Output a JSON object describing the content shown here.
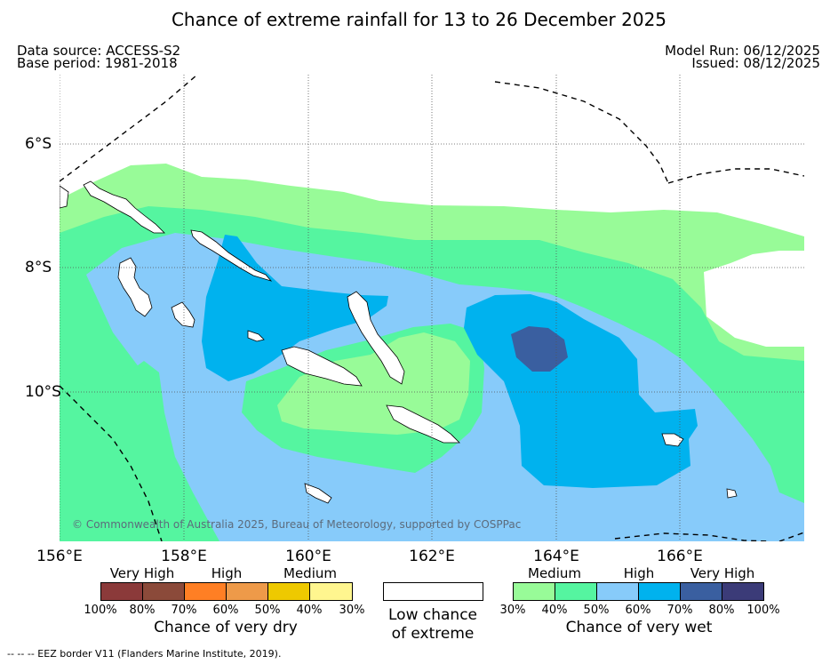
{
  "title": "Chance of extreme rainfall for 13 to 26 December 2025",
  "meta": {
    "data_source": "Data source: ACCESS-S2",
    "base_period": "Base period: 1981-2018",
    "model_run": "Model Run: 06/12/2025",
    "issued": "Issued: 08/12/2025"
  },
  "map": {
    "lon_labels": [
      "156°E",
      "158°E",
      "160°E",
      "162°E",
      "164°E",
      "166°E"
    ],
    "lat_labels": [
      "6°S",
      "8°S",
      "10°S"
    ],
    "copyright": "© Commonwealth of Australia 2025, Bureau of Meteorology, supported by COSPPac",
    "fill_colors": {
      "c30": "#98fb98",
      "c40": "#55f5a0",
      "c50": "#87cbfa",
      "c60": "#00b2ee",
      "c70": "#3a5fa0",
      "land": "#ffffff"
    }
  },
  "legend": {
    "dry": {
      "categories": [
        "Very High",
        "High",
        "Medium"
      ],
      "percent_labels": [
        "100%",
        "80%",
        "70%",
        "60%",
        "50%",
        "40%",
        "30%"
      ],
      "colors": [
        "#8b3a3a",
        "#8b4a3a",
        "#ff7f24",
        "#ee9a49",
        "#eec900",
        "#fff68f"
      ],
      "caption": "Chance of very dry"
    },
    "low": {
      "caption_line1": "Low chance",
      "caption_line2": "of extreme",
      "color": "#ffffff"
    },
    "wet": {
      "categories": [
        "Medium",
        "High",
        "Very High"
      ],
      "percent_labels": [
        "30%",
        "40%",
        "50%",
        "60%",
        "70%",
        "80%",
        "100%"
      ],
      "colors": [
        "#98fb98",
        "#55f5a0",
        "#87cbfa",
        "#00b2ee",
        "#3a5fa0",
        "#3b3b78"
      ],
      "caption": "Chance of very wet"
    }
  },
  "footer": {
    "eez_note": "-- -- -- EEZ border V11 (Flanders Marine Institute, 2019)."
  }
}
